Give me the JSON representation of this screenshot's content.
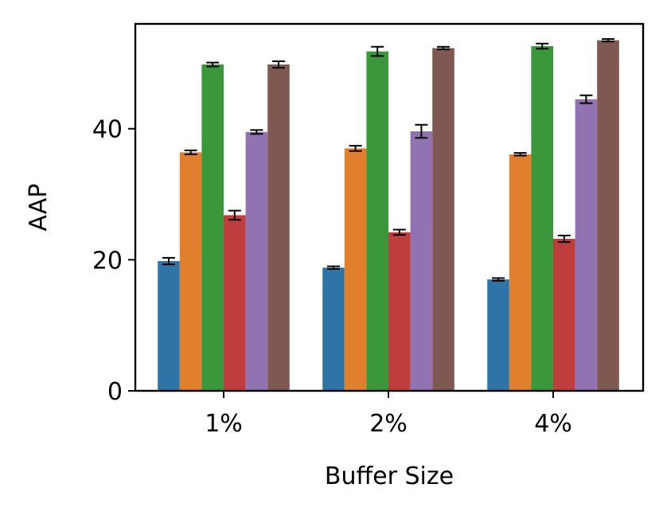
{
  "chart_data": {
    "type": "bar",
    "xlabel": "Buffer Size",
    "ylabel": "AAP",
    "categories": [
      "1%",
      "2%",
      "4%"
    ],
    "ylim": [
      0,
      56
    ],
    "yticks": [
      0,
      20,
      40
    ],
    "grid": false,
    "legend": "none",
    "series": [
      {
        "color": "#2e74a6",
        "values": [
          19.8,
          18.8,
          17.0
        ],
        "errors": [
          0.5,
          0.2,
          0.2
        ]
      },
      {
        "color": "#e07f2c",
        "values": [
          36.4,
          37.0,
          36.1
        ],
        "errors": [
          0.3,
          0.4,
          0.2
        ]
      },
      {
        "color": "#3a973a",
        "values": [
          49.8,
          51.8,
          52.6
        ],
        "errors": [
          0.3,
          0.7,
          0.4
        ]
      },
      {
        "color": "#c03d3e",
        "values": [
          26.8,
          24.2,
          23.2
        ],
        "errors": [
          0.7,
          0.4,
          0.5
        ]
      },
      {
        "color": "#9173b1",
        "values": [
          39.5,
          39.6,
          44.5
        ],
        "errors": [
          0.3,
          1.0,
          0.6
        ]
      },
      {
        "color": "#7f5852",
        "values": [
          49.8,
          52.3,
          53.5
        ],
        "errors": [
          0.5,
          0.2,
          0.2
        ]
      }
    ]
  }
}
